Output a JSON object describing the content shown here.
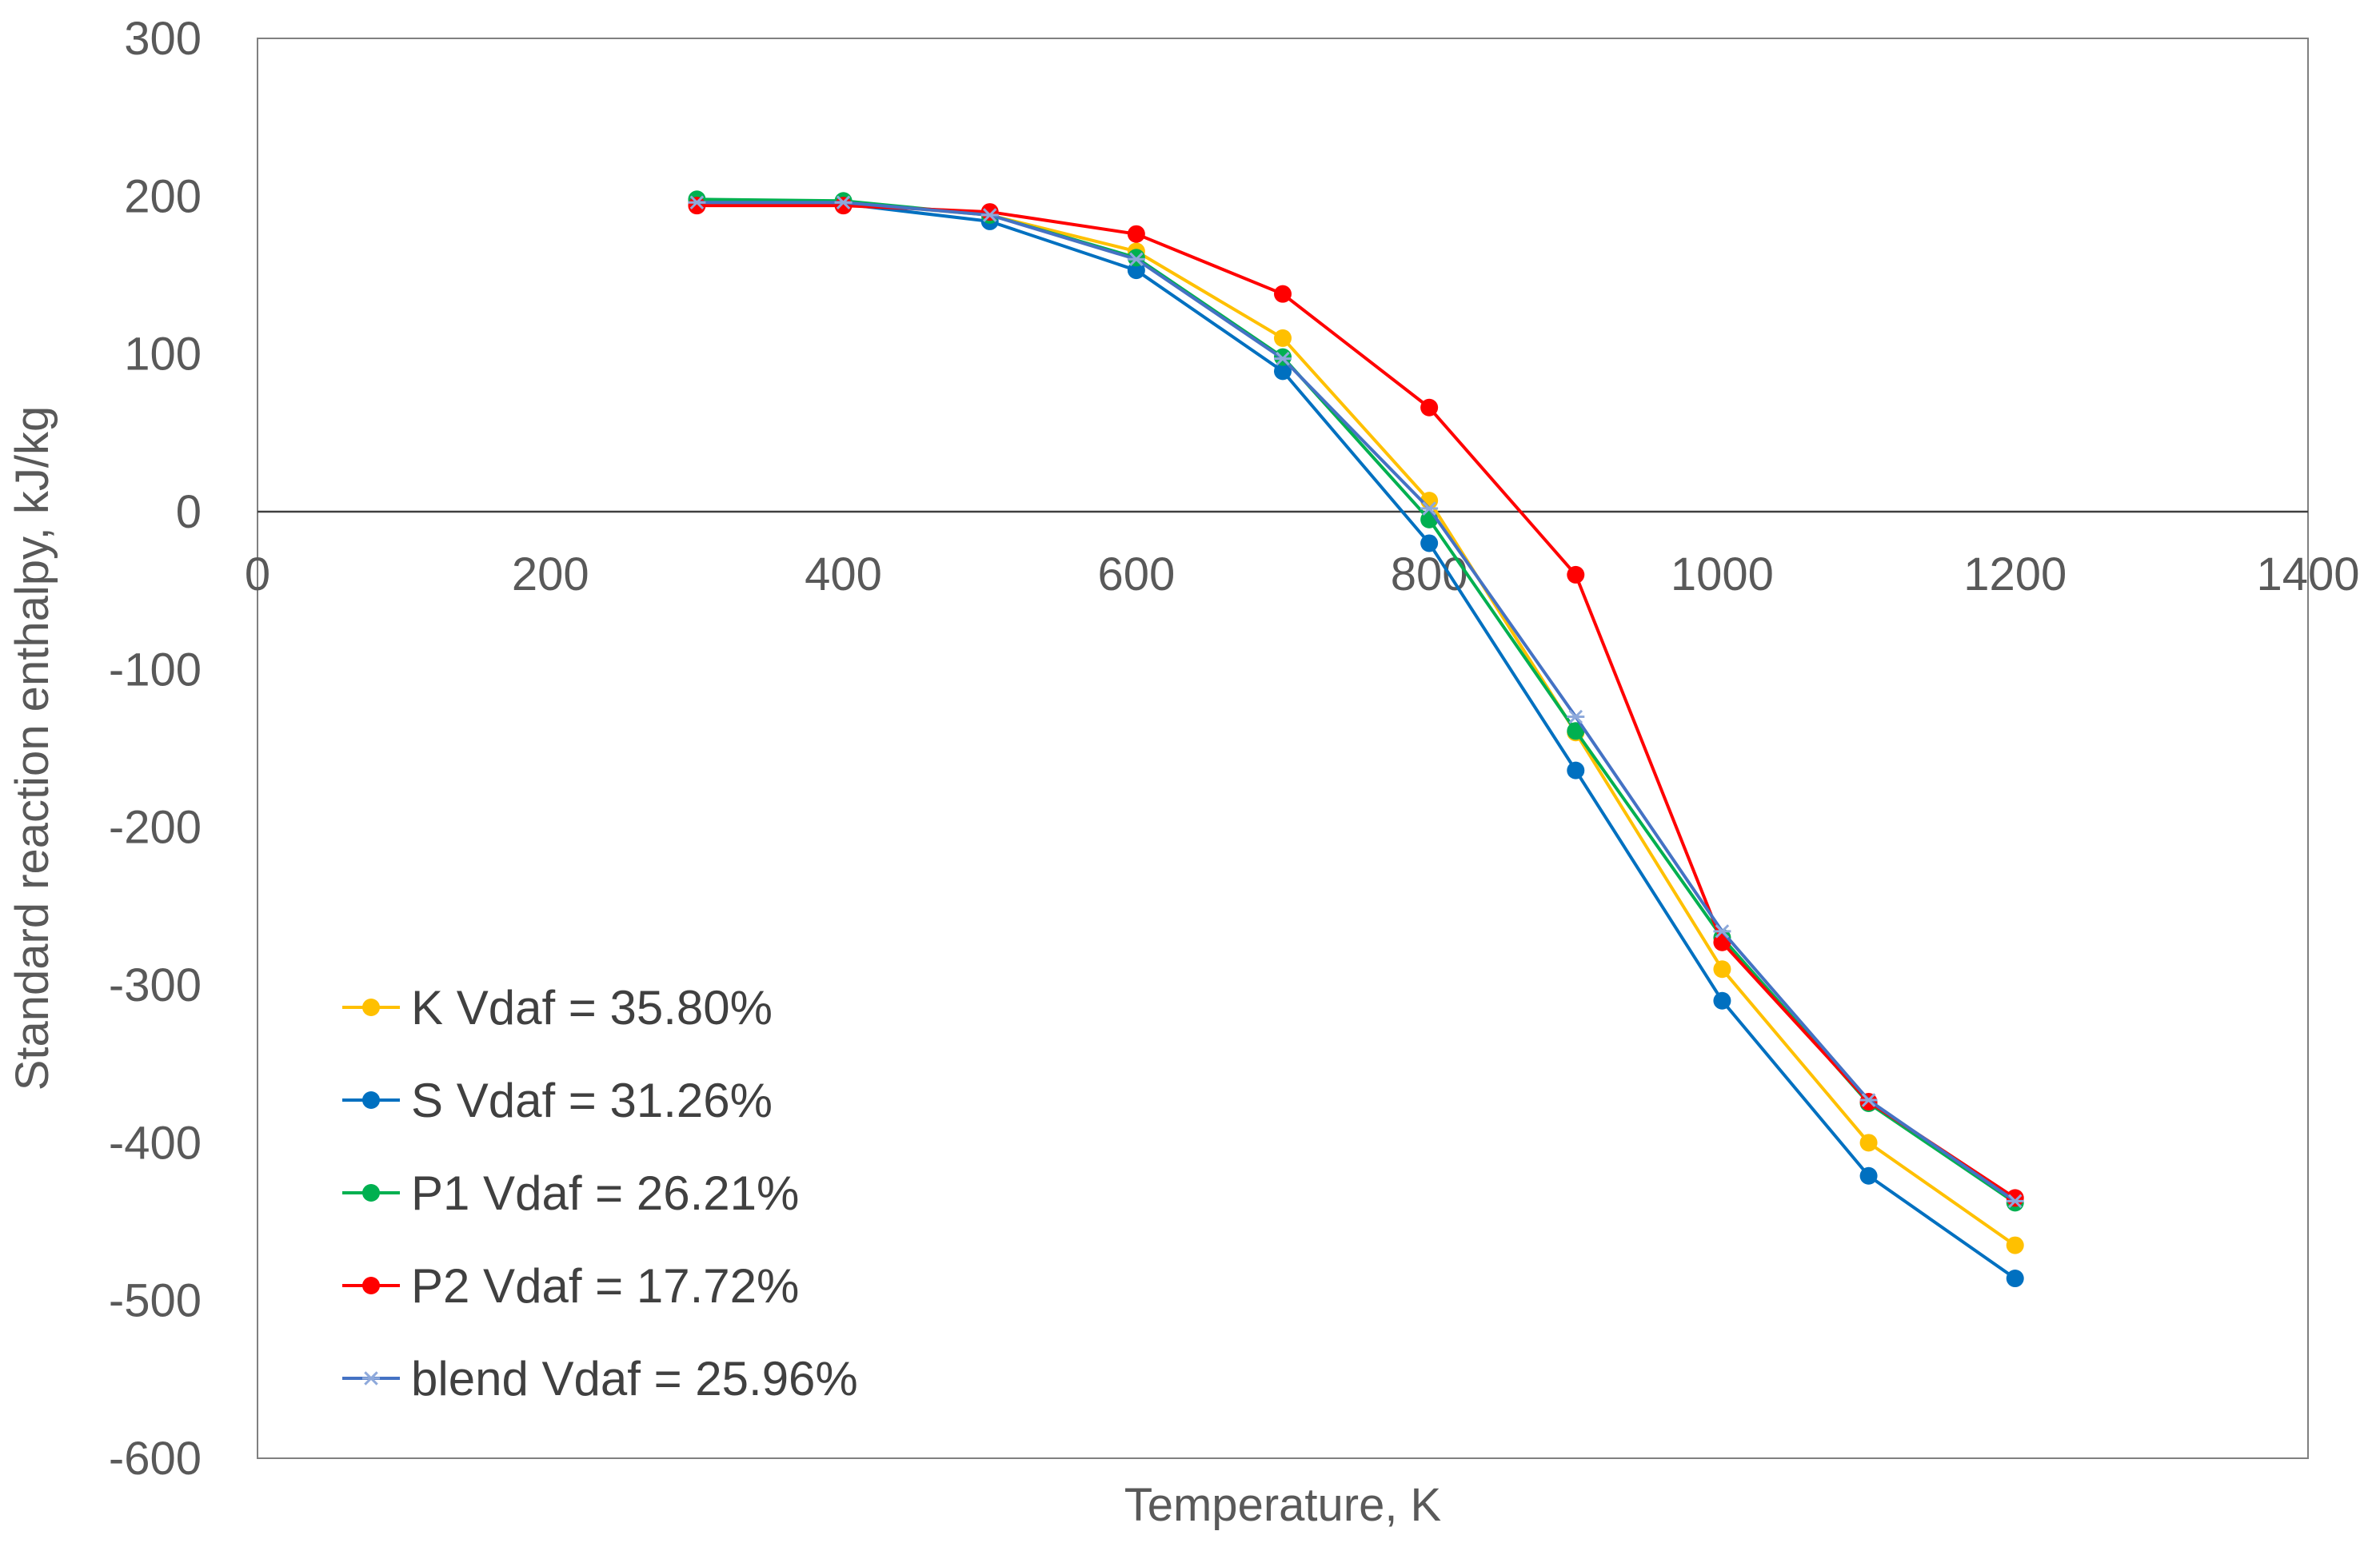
{
  "chart_data": {
    "type": "line",
    "title": "",
    "xlabel": "Temperature, K",
    "ylabel": "Standard reaction enthalpy, kJ/kg",
    "xlim": [
      0,
      1400
    ],
    "ylim": [
      -600,
      300
    ],
    "x_ticks": [
      0,
      200,
      400,
      600,
      800,
      1000,
      1200,
      1400
    ],
    "y_ticks": [
      300,
      200,
      100,
      0,
      -100,
      -200,
      -300,
      -400,
      -500,
      -600
    ],
    "grid": false,
    "legend_position": "bottom-left",
    "x": [
      300,
      400,
      500,
      600,
      700,
      800,
      900,
      1000,
      1100,
      1200
    ],
    "series": [
      {
        "name": "K Vdaf = 35.80%",
        "color": "#FFC000",
        "marker": "circle",
        "values": [
          197,
          196,
          188,
          165,
          110,
          7,
          -140,
          -290,
          -400,
          -465
        ]
      },
      {
        "name": "S Vdaf = 31.26%",
        "color": "#0070C0",
        "marker": "circle",
        "values": [
          196,
          195,
          184,
          153,
          89,
          -20,
          -164,
          -310,
          -421,
          -486
        ]
      },
      {
        "name": "P1 Vdaf = 26.21%",
        "color": "#00B050",
        "marker": "circle",
        "values": [
          198,
          197,
          188,
          161,
          98,
          -5,
          -139,
          -270,
          -375,
          -438
        ]
      },
      {
        "name": "P2 Vdaf = 17.72%",
        "color": "#FF0000",
        "marker": "circle",
        "values": [
          194,
          194,
          190,
          176,
          138,
          66,
          -40,
          -273,
          -374,
          -435
        ]
      },
      {
        "name": "blend Vdaf = 25.96%",
        "color": "#4472C4",
        "marker": "star",
        "values": [
          196,
          196,
          188,
          160,
          97,
          2,
          -130,
          -266,
          -373,
          -437
        ]
      }
    ]
  }
}
